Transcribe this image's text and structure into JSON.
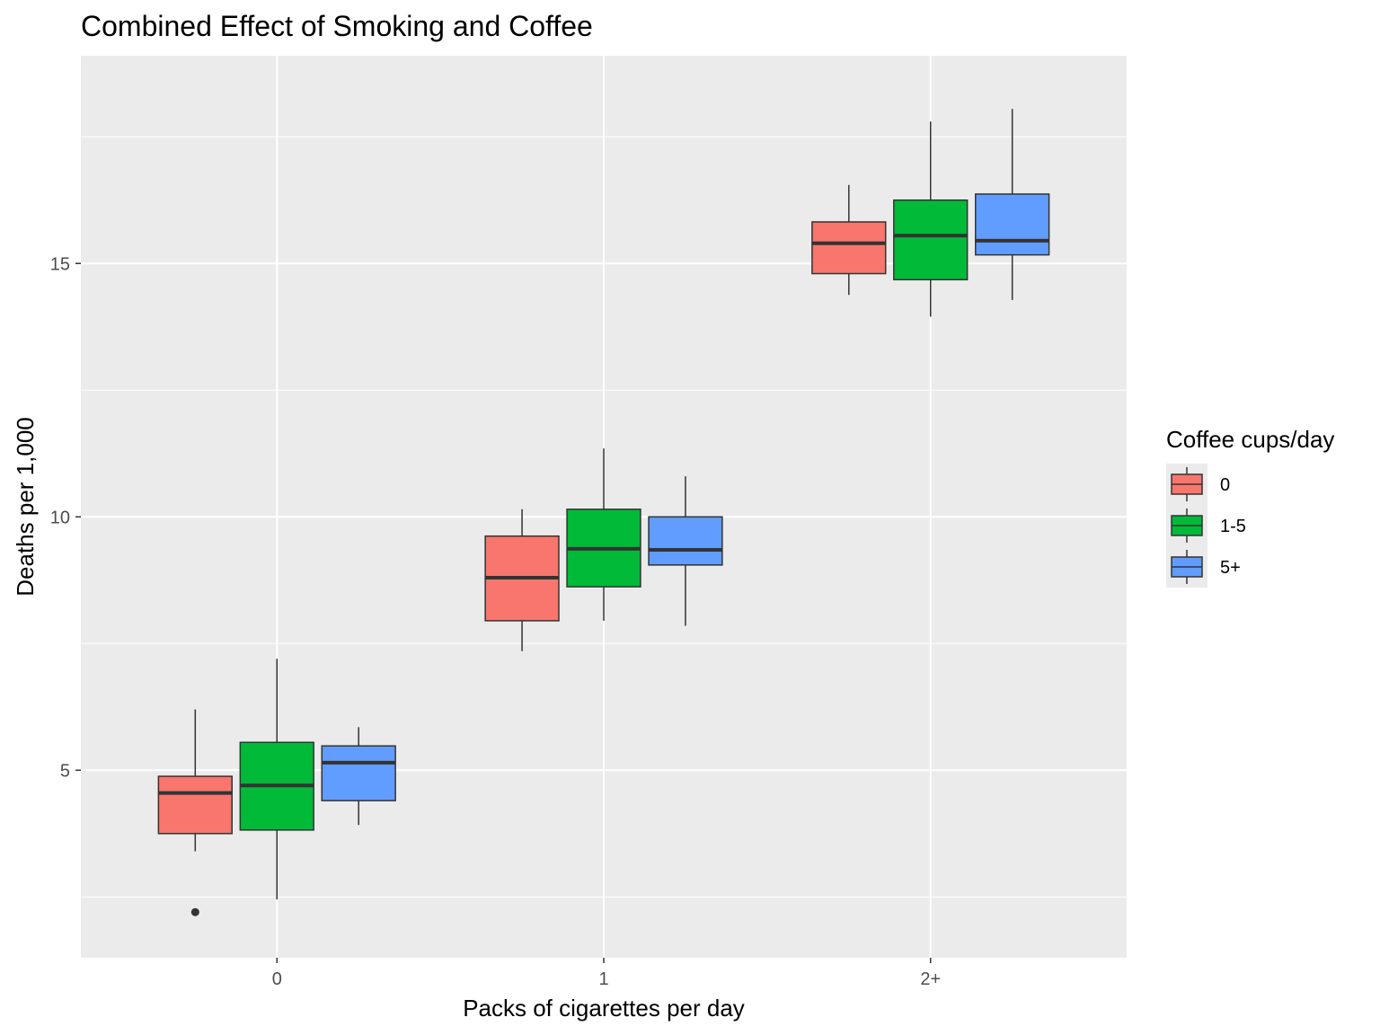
{
  "chart_data": {
    "type": "boxplot",
    "title": "Combined Effect of Smoking and Coffee",
    "xlabel": "Packs of cigarettes per day",
    "ylabel": "Deaths per 1,000",
    "categories": [
      "0",
      "1",
      "2+"
    ],
    "ylim": [
      1.3,
      19.1
    ],
    "yticks": [
      5,
      10,
      15
    ],
    "grid": true,
    "legend": {
      "title": "Coffee cups/day",
      "position": "right"
    },
    "series": [
      {
        "name": "0",
        "color": "#F8766D",
        "boxes": [
          {
            "category": "0",
            "whisker_low": 3.4,
            "q1": 3.75,
            "median": 4.55,
            "q3": 4.88,
            "whisker_high": 6.2,
            "outliers": [
              2.2
            ]
          },
          {
            "category": "1",
            "whisker_low": 7.35,
            "q1": 7.95,
            "median": 8.8,
            "q3": 9.62,
            "whisker_high": 10.15,
            "outliers": []
          },
          {
            "category": "2+",
            "whisker_low": 14.38,
            "q1": 14.8,
            "median": 15.4,
            "q3": 15.82,
            "whisker_high": 16.55,
            "outliers": []
          }
        ]
      },
      {
        "name": "1-5",
        "color": "#00BA38",
        "boxes": [
          {
            "category": "0",
            "whisker_low": 2.45,
            "q1": 3.82,
            "median": 4.7,
            "q3": 5.55,
            "whisker_high": 7.2,
            "outliers": []
          },
          {
            "category": "1",
            "whisker_low": 7.95,
            "q1": 8.62,
            "median": 9.37,
            "q3": 10.15,
            "whisker_high": 11.35,
            "outliers": []
          },
          {
            "category": "2+",
            "whisker_low": 13.95,
            "q1": 14.68,
            "median": 15.55,
            "q3": 16.25,
            "whisker_high": 17.8,
            "outliers": []
          }
        ]
      },
      {
        "name": "5+",
        "color": "#619CFF",
        "boxes": [
          {
            "category": "0",
            "whisker_low": 3.92,
            "q1": 4.4,
            "median": 5.15,
            "q3": 5.48,
            "whisker_high": 5.85,
            "outliers": []
          },
          {
            "category": "1",
            "whisker_low": 7.85,
            "q1": 9.05,
            "median": 9.35,
            "q3": 10.0,
            "whisker_high": 10.8,
            "outliers": []
          },
          {
            "category": "2+",
            "whisker_low": 14.28,
            "q1": 15.17,
            "median": 15.45,
            "q3": 16.37,
            "whisker_high": 18.05,
            "outliers": []
          }
        ]
      }
    ]
  }
}
